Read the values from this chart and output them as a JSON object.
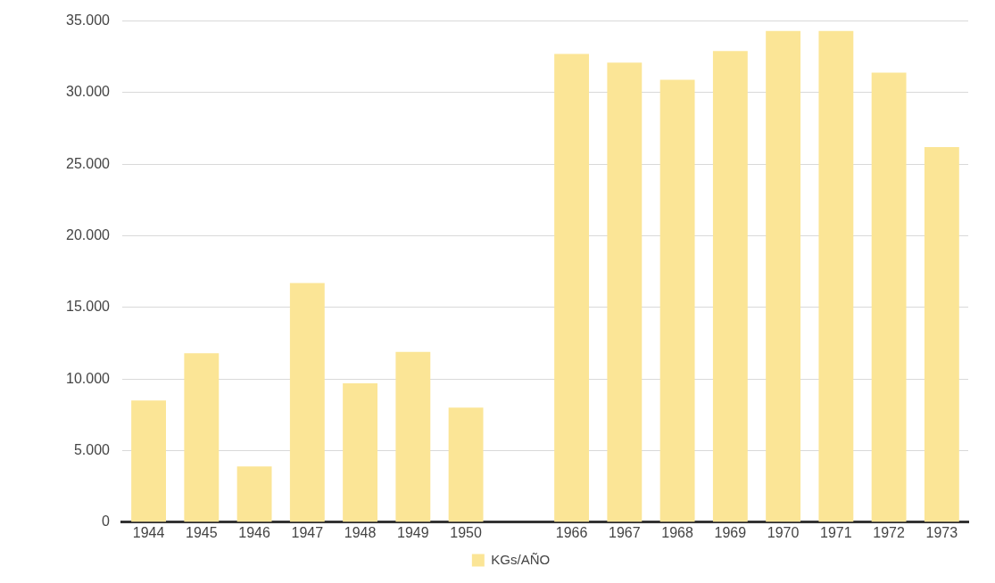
{
  "chart_data": {
    "type": "bar",
    "categories": [
      "1944",
      "1945",
      "1946",
      "1947",
      "1948",
      "1949",
      "1950",
      null,
      "1966",
      "1967",
      "1968",
      "1969",
      "1970",
      "1971",
      "1972",
      "1973"
    ],
    "series": [
      {
        "name": "KGs/AÑO",
        "color": "#fbe596",
        "values": [
          8500,
          11800,
          3900,
          16700,
          9700,
          11900,
          8000,
          null,
          32700,
          32100,
          30900,
          32900,
          34300,
          34300,
          31400,
          26200
        ]
      }
    ],
    "ylim": [
      0,
      35000
    ],
    "yticks": [
      {
        "value": 0,
        "label": "0"
      },
      {
        "value": 5000,
        "label": "5.000"
      },
      {
        "value": 10000,
        "label": "10.000"
      },
      {
        "value": 15000,
        "label": "15.000"
      },
      {
        "value": 20000,
        "label": "20.000"
      },
      {
        "value": 25000,
        "label": "25.000"
      },
      {
        "value": 30000,
        "label": "30.000"
      },
      {
        "value": 35000,
        "label": "35.000"
      }
    ],
    "grid": "y",
    "legend": "bottom"
  }
}
